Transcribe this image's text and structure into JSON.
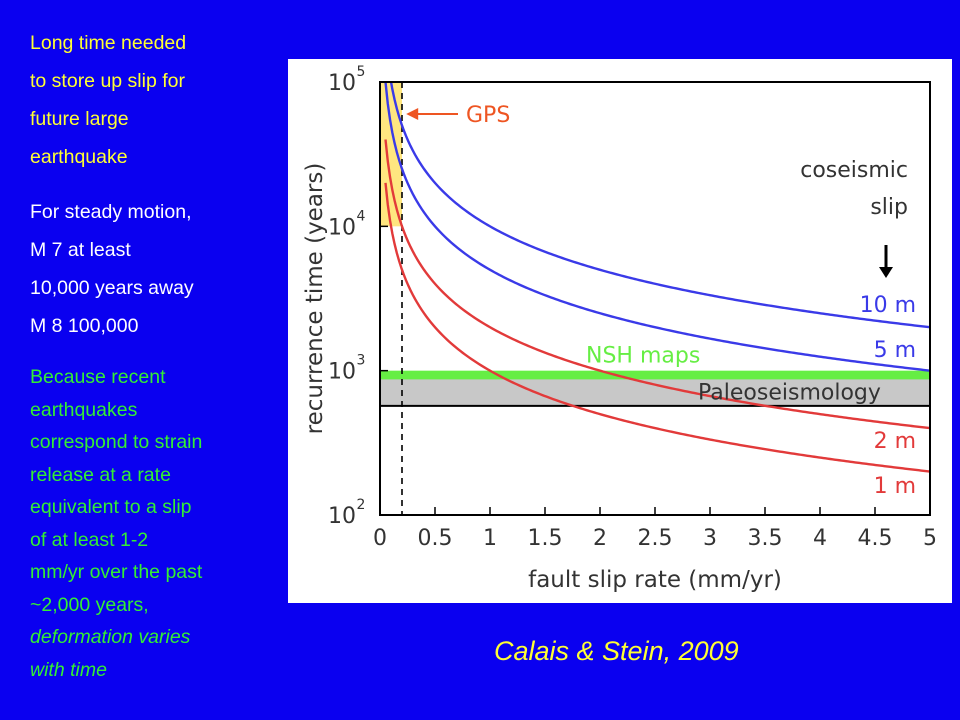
{
  "text": {
    "para1": [
      "Long time needed",
      "to store up slip for",
      "future large",
      "earthquake"
    ],
    "para2": [
      "For steady motion,",
      "M 7 at least",
      "10,000 years away",
      "M 8 100,000"
    ],
    "para3": [
      "Because recent",
      "earthquakes",
      "correspond to strain",
      "release at a rate",
      "equivalent to a slip",
      "of at least 1-2",
      "mm/yr over the past",
      "~2,000 years,"
    ],
    "para3_italic": [
      "deformation varies",
      "with time"
    ]
  },
  "citation": "Calais & Stein, 2009",
  "colors": {
    "background": "#0a00f0",
    "yellow_text": "#ffff33",
    "green_text": "#33ee33",
    "blue_curve": "#3a3ae8",
    "red_curve": "#e23a3a",
    "nsh_band": "#66ee44",
    "paleo_band": "#c8c8c8",
    "gps_band": "#ffe680",
    "gps_arrow": "#ee5522"
  },
  "chart_data": {
    "type": "line",
    "xlabel": "fault slip rate (mm/yr)",
    "ylabel": "recurrence time (years)",
    "xlim": [
      0,
      5
    ],
    "ylim": [
      100,
      100000
    ],
    "y_scale": "log",
    "x_ticks": [
      0,
      0.5,
      1,
      1.5,
      2,
      2.5,
      3,
      3.5,
      4,
      4.5,
      5
    ],
    "x_tick_labels": [
      "0",
      "0.5",
      "1",
      "1.5",
      "2",
      "2.5",
      "3",
      "3.5",
      "4",
      "4.5",
      "5"
    ],
    "y_ticks": [
      100,
      1000,
      10000,
      100000
    ],
    "y_tick_labels": [
      {
        "base": "10",
        "exp": "2"
      },
      {
        "base": "10",
        "exp": "3"
      },
      {
        "base": "10",
        "exp": "4"
      },
      {
        "base": "10",
        "exp": "5"
      }
    ],
    "series": [
      {
        "name": "10 m",
        "slip_m": 10,
        "color": "blue"
      },
      {
        "name": "5 m",
        "slip_m": 5,
        "color": "blue"
      },
      {
        "name": "2 m",
        "slip_m": 2,
        "color": "red"
      },
      {
        "name": "1 m",
        "slip_m": 1,
        "color": "red"
      }
    ],
    "bands": [
      {
        "name": "NSH maps",
        "y_range": [
          870,
          1000
        ],
        "color": "green"
      },
      {
        "name": "Paleoseismology",
        "y_range": [
          570,
          900
        ],
        "color": "gray"
      }
    ],
    "gps": {
      "label": "GPS",
      "x_range": [
        0,
        0.2
      ],
      "y_range": [
        10000,
        100000
      ]
    },
    "annotation_title": [
      "coseismic",
      "slip"
    ]
  }
}
